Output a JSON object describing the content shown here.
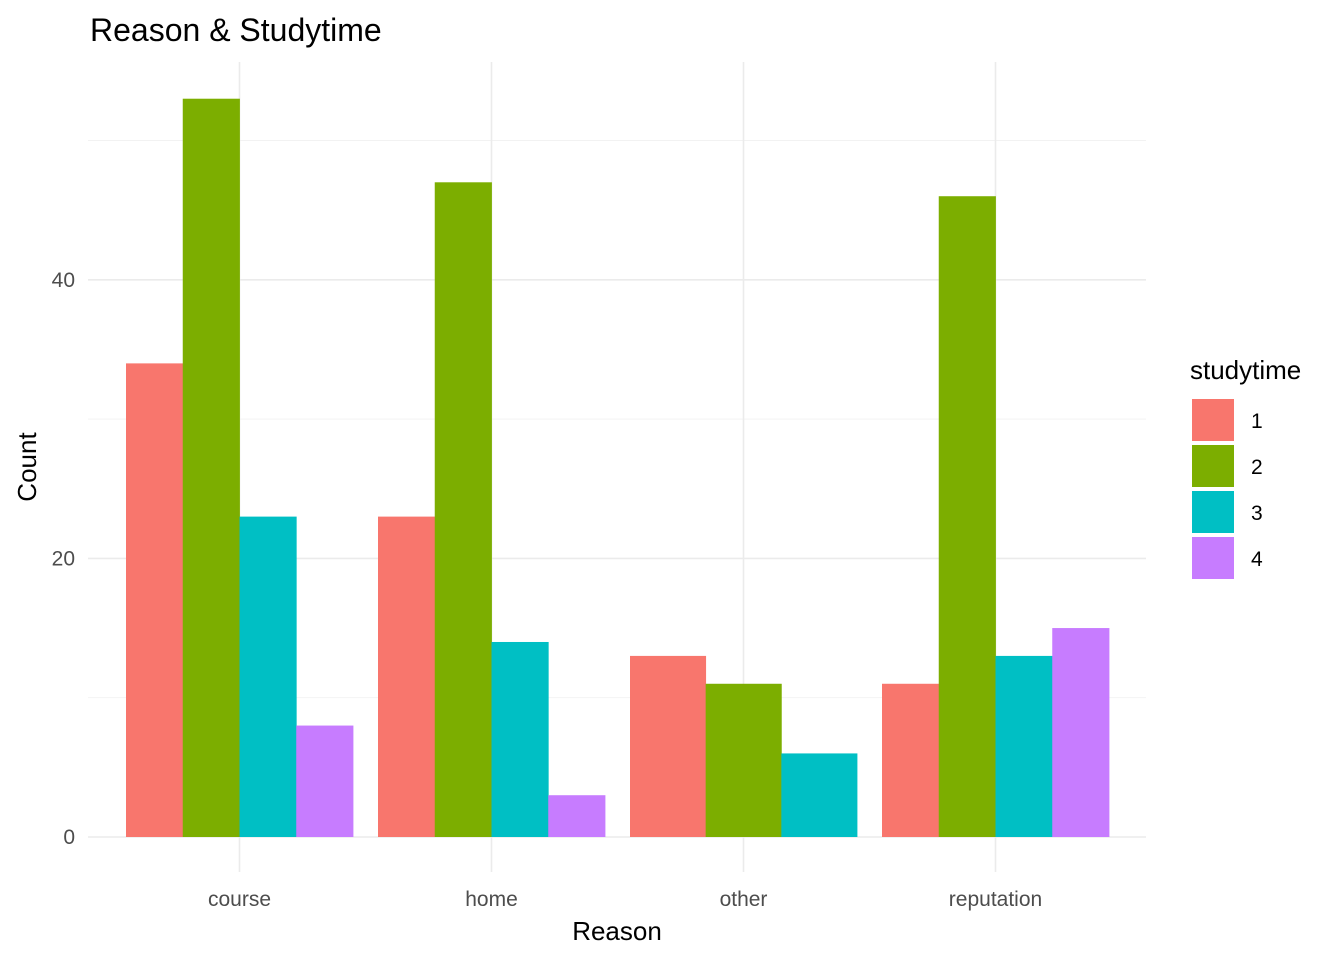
{
  "chart_data": {
    "type": "bar",
    "title": "Reason & Studytime",
    "xlabel": "Reason",
    "ylabel": "Count",
    "categories": [
      "course",
      "home",
      "other",
      "reputation"
    ],
    "series": [
      {
        "name": "1",
        "color": "#F8766D",
        "values": [
          34,
          23,
          13,
          11
        ]
      },
      {
        "name": "2",
        "color": "#7CAE00",
        "values": [
          53,
          47,
          11,
          46
        ]
      },
      {
        "name": "3",
        "color": "#00BFC4",
        "values": [
          23,
          14,
          6,
          13
        ]
      },
      {
        "name": "4",
        "color": "#C77CFF",
        "values": [
          8,
          3,
          0,
          15
        ]
      }
    ],
    "ylim": [
      0,
      56
    ],
    "yticks": [
      0,
      20,
      40
    ],
    "grid": true,
    "legend": {
      "title": "studytime",
      "position": "right"
    }
  }
}
